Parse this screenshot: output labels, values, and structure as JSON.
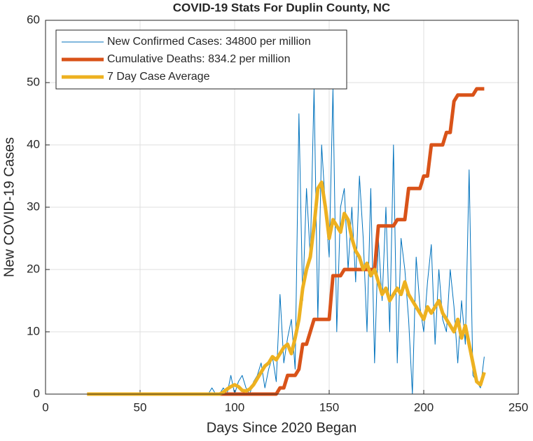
{
  "chart_data": {
    "type": "line",
    "title": "COVID-19 Stats For Duplin County, NC",
    "xlabel": "Days Since 2020 Began",
    "ylabel": "New COVID-19 Cases",
    "xlim": [
      0,
      250
    ],
    "xticks": [
      0,
      50,
      100,
      150,
      200,
      250
    ],
    "ylim": [
      0,
      60
    ],
    "yticks": [
      0,
      10,
      20,
      30,
      40,
      50,
      60
    ],
    "grid": true,
    "legend": "upper-left",
    "x": [
      22,
      24,
      26,
      28,
      30,
      32,
      34,
      36,
      38,
      40,
      42,
      44,
      46,
      48,
      50,
      52,
      54,
      56,
      58,
      60,
      62,
      64,
      66,
      68,
      70,
      72,
      74,
      76,
      78,
      80,
      82,
      84,
      86,
      88,
      90,
      92,
      94,
      96,
      98,
      100,
      102,
      104,
      106,
      108,
      110,
      112,
      114,
      116,
      118,
      120,
      122,
      124,
      126,
      128,
      130,
      132,
      134,
      136,
      138,
      140,
      142,
      144,
      146,
      148,
      150,
      152,
      154,
      156,
      158,
      160,
      162,
      164,
      166,
      168,
      170,
      172,
      174,
      176,
      178,
      180,
      182,
      184,
      186,
      188,
      190,
      192,
      194,
      196,
      198,
      200,
      202,
      204,
      206,
      208,
      210,
      212,
      214,
      216,
      218,
      220,
      222,
      224,
      226,
      228,
      230,
      232
    ],
    "series": [
      {
        "name": "New Confirmed Cases: 34800 per million",
        "color": "#0072bd",
        "width": 1,
        "values": [
          0,
          0,
          0,
          0,
          0,
          0,
          0,
          0,
          0,
          0,
          0,
          0,
          0,
          0,
          0,
          0,
          0,
          0,
          0,
          0,
          0,
          0,
          0,
          0,
          0,
          0,
          0,
          0,
          0,
          0,
          0,
          0,
          0,
          1,
          0,
          0,
          1,
          0,
          3,
          0,
          2,
          3,
          1,
          0,
          2,
          3,
          5,
          1,
          4,
          6,
          2,
          16,
          5,
          9,
          12,
          4,
          45,
          15,
          33,
          22,
          49,
          12,
          40,
          30,
          22,
          49,
          10,
          30,
          33,
          20,
          30,
          18,
          35,
          25,
          10,
          33,
          5,
          25,
          15,
          30,
          10,
          40,
          5,
          25,
          20,
          12,
          0,
          22,
          14,
          10,
          18,
          24,
          8,
          20,
          12,
          10,
          20,
          14,
          5,
          15,
          8,
          36,
          3,
          2,
          1,
          6
        ]
      },
      {
        "name": "Cumulative Deaths: 834.2 per million",
        "color": "#d95319",
        "width": 5,
        "values": [
          0,
          0,
          0,
          0,
          0,
          0,
          0,
          0,
          0,
          0,
          0,
          0,
          0,
          0,
          0,
          0,
          0,
          0,
          0,
          0,
          0,
          0,
          0,
          0,
          0,
          0,
          0,
          0,
          0,
          0,
          0,
          0,
          0,
          0,
          0,
          0,
          0,
          0,
          0,
          0,
          0,
          0,
          0,
          0,
          0,
          0,
          0,
          0,
          0,
          0,
          0,
          1,
          1,
          3,
          3,
          3,
          4,
          8,
          8,
          10,
          12,
          12,
          12,
          12,
          12,
          19,
          19,
          19,
          20,
          20,
          20,
          20,
          20,
          20,
          20,
          20,
          20,
          27,
          27,
          27,
          27,
          27,
          28,
          28,
          28,
          33,
          33,
          33,
          33,
          35,
          35,
          40,
          40,
          40,
          40,
          42,
          42,
          47,
          48,
          48,
          48,
          48,
          48,
          49,
          49,
          49
        ]
      },
      {
        "name": "7 Day Case Average",
        "color": "#edb120",
        "width": 5,
        "values": [
          0,
          0,
          0,
          0,
          0,
          0,
          0,
          0,
          0,
          0,
          0,
          0,
          0,
          0,
          0,
          0,
          0,
          0,
          0,
          0,
          0,
          0,
          0,
          0,
          0,
          0,
          0,
          0,
          0,
          0,
          0,
          0,
          0,
          0,
          0,
          0,
          0.3,
          0.8,
          1.2,
          1.5,
          1.2,
          0.6,
          0.5,
          0.8,
          1.5,
          2.5,
          3.5,
          4.5,
          5,
          6,
          5.5,
          6.5,
          7.5,
          8,
          6.5,
          9,
          12,
          17,
          20,
          22,
          27,
          33,
          34,
          30,
          25,
          28,
          27,
          26,
          29,
          28,
          25,
          23,
          22,
          20,
          21,
          19,
          20,
          18,
          16,
          17,
          15,
          16,
          17,
          16,
          18,
          16,
          15,
          14,
          13,
          12,
          14,
          13,
          14,
          15,
          13,
          12,
          11,
          10,
          12,
          9,
          11,
          8,
          5,
          2,
          1.5,
          3.5
        ]
      }
    ]
  }
}
